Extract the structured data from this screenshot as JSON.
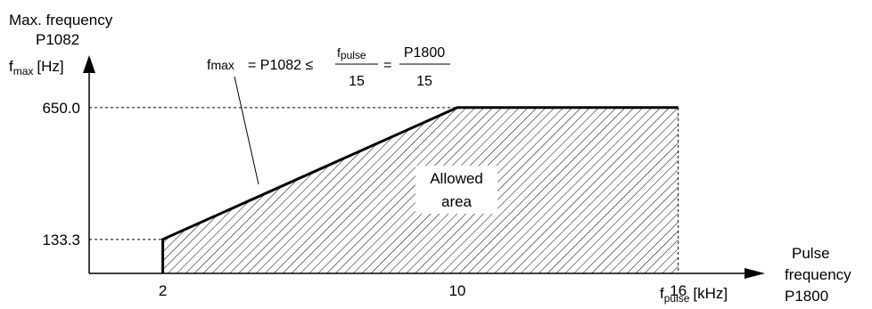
{
  "chart_data": {
    "type": "area",
    "y_axis_title": {
      "line1": "Max. frequency",
      "line2": "P1082",
      "symbol": "f",
      "symbol_sub": "max",
      "unit": "[Hz]"
    },
    "x_axis_title": {
      "line1": "Pulse",
      "line2": "frequency",
      "line3": "P1800",
      "symbol": "f",
      "symbol_sub": "pulse",
      "unit": "[kHz]"
    },
    "x_ticks": [
      "2",
      "10",
      "16"
    ],
    "y_ticks": [
      "133.3",
      "650.0"
    ],
    "boundary": {
      "x": [
        2,
        2,
        10,
        16,
        16
      ],
      "y": [
        0,
        133.3,
        650.0,
        650.0,
        0
      ]
    },
    "xlim": [
      0,
      17.8
    ],
    "ylim": [
      0,
      810
    ],
    "region_label": [
      "Allowed",
      "area"
    ],
    "formula": {
      "lhs_symbol": "f",
      "lhs_sub": "max",
      "equals_param": "= P1082 ≤",
      "frac1_num_symbol": "f",
      "frac1_num_sub": "pulse",
      "frac1_den": "15",
      "equals": "=",
      "frac2_num": "P1800",
      "frac2_den": "15"
    },
    "hatch": "diagonal",
    "grid": false,
    "colors": {
      "line": "#000000",
      "background": "#ffffff"
    }
  }
}
